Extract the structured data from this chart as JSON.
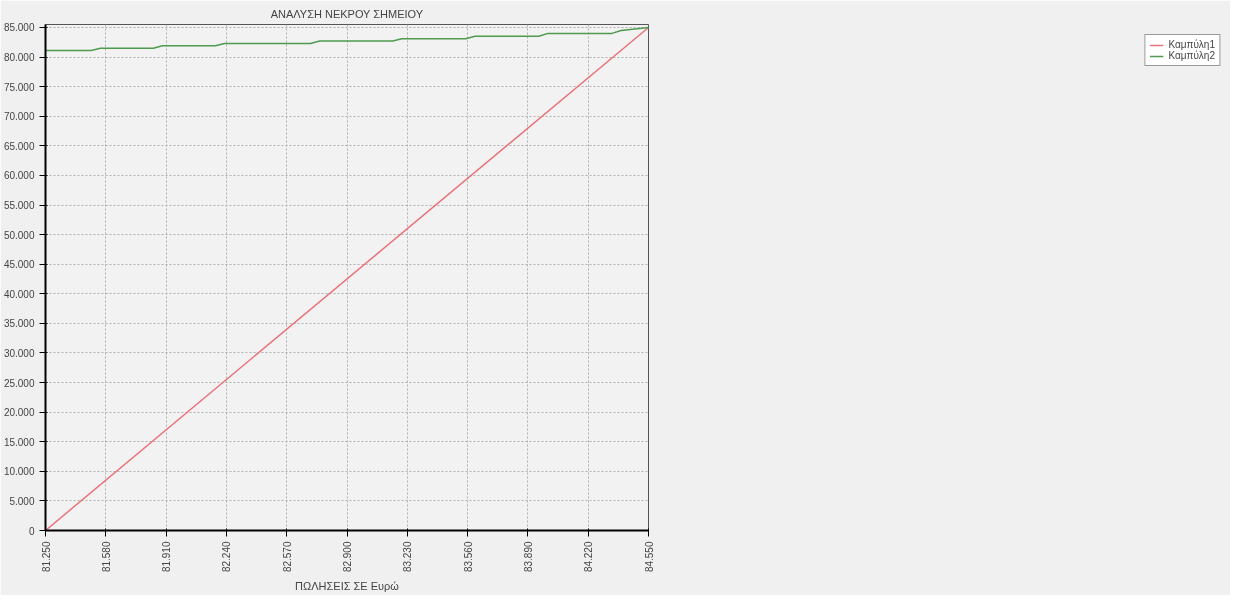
{
  "chart_data": {
    "type": "line",
    "title": "ΑΝΑΛΥΣΗ ΝΕΚΡΟΥ ΣΗΜΕΙΟΥ",
    "xlabel": "ΠΩΛΗΣΕΙΣ ΣΕ Ευρώ",
    "series": [
      {
        "name": "Καμπύλη1",
        "color": "#e8737a",
        "x": [
          81250,
          84550
        ],
        "values": [
          0,
          85000
        ]
      },
      {
        "name": "Καμπύλη2",
        "color": "#4f9a4f",
        "x": [
          81250,
          81500,
          81550,
          81840,
          81890,
          82180,
          82230,
          82700,
          82750,
          83150,
          83200,
          83550,
          83600,
          83950,
          84000,
          84350,
          84400,
          84550
        ],
        "values": [
          81100,
          81100,
          81500,
          81500,
          81900,
          81900,
          82300,
          82300,
          82700,
          82700,
          83100,
          83100,
          83500,
          83500,
          84000,
          84000,
          84500,
          85000
        ]
      }
    ],
    "xlim": [
      81250,
      84550
    ],
    "ylim": [
      0,
      85500
    ],
    "xticks": [
      {
        "value": 81250,
        "label": "81.250"
      },
      {
        "value": 81580,
        "label": "81.580"
      },
      {
        "value": 81910,
        "label": "81.910"
      },
      {
        "value": 82240,
        "label": "82.240"
      },
      {
        "value": 82570,
        "label": "82.570"
      },
      {
        "value": 82900,
        "label": "82.900"
      },
      {
        "value": 83230,
        "label": "83.230"
      },
      {
        "value": 83560,
        "label": "83.560"
      },
      {
        "value": 83890,
        "label": "83.890"
      },
      {
        "value": 84220,
        "label": "84.220"
      },
      {
        "value": 84550,
        "label": "84.550"
      }
    ],
    "yticks": [
      0,
      {
        "value": 5000,
        "label": "5.000"
      },
      {
        "value": 10000,
        "label": "10.000"
      },
      {
        "value": 15000,
        "label": "15.000"
      },
      {
        "value": 20000,
        "label": "20.000"
      },
      {
        "value": 25000,
        "label": "25.000"
      },
      {
        "value": 30000,
        "label": "30.000"
      },
      {
        "value": 35000,
        "label": "35.000"
      },
      {
        "value": 40000,
        "label": "40.000"
      },
      {
        "value": 45000,
        "label": "45.000"
      },
      {
        "value": 50000,
        "label": "50.000"
      },
      {
        "value": 55000,
        "label": "55.000"
      },
      {
        "value": 60000,
        "label": "60.000"
      },
      {
        "value": 65000,
        "label": "65.000"
      },
      {
        "value": 70000,
        "label": "70.000"
      },
      {
        "value": 75000,
        "label": "75.000"
      },
      {
        "value": 80000,
        "label": "80.000"
      },
      {
        "value": 85000,
        "label": "85.000"
      }
    ],
    "grid": true,
    "legend": "top right",
    "marker": "none",
    "line_style": "solid"
  }
}
